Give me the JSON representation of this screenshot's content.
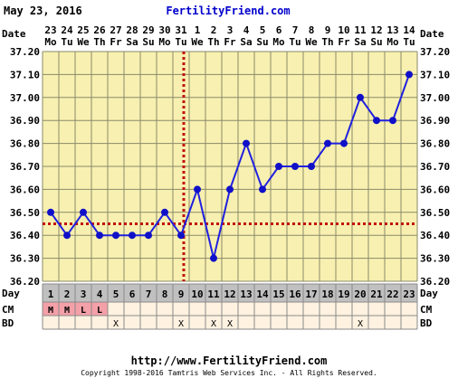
{
  "header": {
    "date": "May 23, 2016",
    "site": "FertilityFriend.com"
  },
  "footer": {
    "url": "http://www.FertilityFriend.com",
    "copyright": "Copyright 1998-2016 Tamtris Web Services Inc. - All Rights Reserved."
  },
  "chart_data": {
    "type": "line",
    "title": "",
    "ylim": [
      36.2,
      37.2
    ],
    "yticks": [
      "36.20",
      "36.30",
      "36.40",
      "36.50",
      "36.60",
      "36.70",
      "36.80",
      "36.90",
      "37.00",
      "37.10",
      "37.20"
    ],
    "row_labels": {
      "date": "Date",
      "day": "Day",
      "cm": "CM",
      "bd": "BD"
    },
    "dates": [
      "23",
      "24",
      "25",
      "26",
      "27",
      "28",
      "29",
      "30",
      "31",
      "1",
      "2",
      "3",
      "4",
      "5",
      "6",
      "7",
      "8",
      "9",
      "10",
      "11",
      "12",
      "13",
      "14"
    ],
    "weekdays": [
      "Mo",
      "Tu",
      "We",
      "Th",
      "Fr",
      "Sa",
      "Su",
      "Mo",
      "Tu",
      "We",
      "Th",
      "Fr",
      "Sa",
      "Su",
      "Mo",
      "Tu",
      "We",
      "Th",
      "Fr",
      "Sa",
      "Su",
      "Mo",
      "Tu"
    ],
    "cycle_days": [
      "1",
      "2",
      "3",
      "4",
      "5",
      "6",
      "7",
      "8",
      "9",
      "10",
      "11",
      "12",
      "13",
      "14",
      "15",
      "16",
      "17",
      "18",
      "19",
      "20",
      "21",
      "22",
      "23"
    ],
    "series": [
      {
        "values": [
          36.5,
          36.4,
          36.5,
          36.4,
          36.4,
          36.4,
          36.4,
          36.5,
          36.4,
          36.6,
          36.3,
          36.6,
          36.8,
          36.6,
          36.7,
          36.7,
          36.7,
          36.8,
          36.8,
          37.0,
          36.9,
          36.9,
          37.1
        ]
      }
    ],
    "coverline": 36.45,
    "ovulation_day": 9,
    "cm": [
      "M",
      "M",
      "L",
      "L",
      "",
      "",
      "",
      "",
      "",
      "",
      "",
      "",
      "",
      "",
      "",
      "",
      "",
      "",
      "",
      "",
      "",
      "",
      ""
    ],
    "bd": [
      "",
      "",
      "",
      "",
      "X",
      "",
      "",
      "",
      "X",
      "",
      "X",
      "X",
      "",
      "",
      "",
      "",
      "",
      "",
      "",
      "X",
      "",
      "",
      ""
    ],
    "colors": {
      "plot_bg": "#f8f0b0",
      "grid": "#8a8a6a",
      "line": "#2020e0",
      "marker": "#1010c8",
      "coverline": "#c01010",
      "day_bg": "#c0c0c0",
      "cm_bg": "#f4a0a8",
      "row_bg": "#fff2e0",
      "link": "#0000cc"
    },
    "grid": true
  }
}
